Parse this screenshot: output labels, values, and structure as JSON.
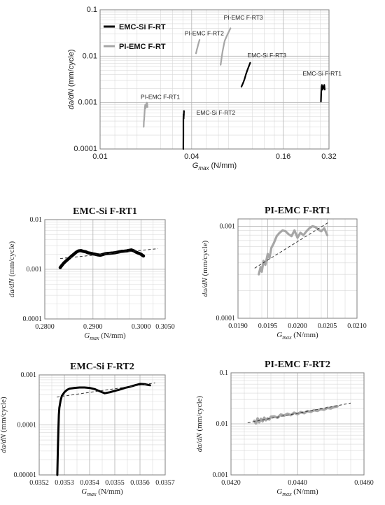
{
  "chart_data": [
    {
      "id": "main",
      "type": "line",
      "xscale": "log2",
      "yscale": "log10",
      "xlim": [
        0.01,
        0.32
      ],
      "ylim": [
        0.0001,
        0.1
      ],
      "xticks": [
        0.01,
        0.04,
        0.16,
        0.32
      ],
      "xtick_labels": [
        "0.01",
        "0.04",
        "0.16",
        "0.32"
      ],
      "yticks": [
        0.0001,
        0.001,
        0.01,
        0.1
      ],
      "ytick_labels": [
        "0.0001",
        "0.001",
        "0.01",
        "0.1"
      ],
      "xlabel_main": "G",
      "xlabel_sub": "max",
      "xlabel_unit": " (N/mm)",
      "ylabel_main": "da/dN",
      "ylabel_unit": " (mm/cycle)",
      "legend": [
        {
          "label": "EMC-Si F-RT",
          "color": "#000000"
        },
        {
          "label": "PI-EMC F-RT",
          "color": "#a6a6a6"
        }
      ],
      "series": [
        {
          "label": "EMC-Si F-RT1",
          "color": "#000000",
          "x": [
            0.2832,
            0.2845,
            0.286,
            0.2875,
            0.289,
            0.2905,
            0.292,
            0.294,
            0.296,
            0.298,
            0.3
          ],
          "y": [
            0.00105,
            0.0016,
            0.0022,
            0.0024,
            0.0021,
            0.0019,
            0.002,
            0.0021,
            0.0023,
            0.0024,
            0.0019
          ]
        },
        {
          "label": "PI-EMC F-RT1",
          "color": "#a6a6a6",
          "x": [
            0.01935,
            0.0194,
            0.0195,
            0.0196,
            0.0197,
            0.0198,
            0.0199,
            0.02,
            0.0201,
            0.0202,
            0.0203,
            0.0204,
            0.0205
          ],
          "y": [
            0.0003,
            0.00038,
            0.00045,
            0.0006,
            0.0008,
            0.0009,
            0.00075,
            0.00085,
            0.0008,
            0.00095,
            0.001,
            0.00095,
            0.0008
          ]
        },
        {
          "label": "EMC-Si F-RT2",
          "color": "#000000",
          "x": [
            0.03527,
            0.03528,
            0.03529,
            0.0353,
            0.03532,
            0.03535,
            0.0354,
            0.03545,
            0.0355,
            0.03555,
            0.0356,
            0.03565
          ],
          "y": [
            0.0001,
            0.0002,
            0.00035,
            0.00045,
            0.00052,
            0.00056,
            0.00056,
            0.00045,
            0.0005,
            0.00055,
            0.00066,
            0.00062
          ]
        },
        {
          "label": "PI-EMC F-RT2",
          "color": "#a6a6a6",
          "x": [
            0.0427,
            0.043,
            0.0433,
            0.0436,
            0.0439,
            0.0442,
            0.0445,
            0.0448,
            0.0451
          ],
          "y": [
            0.0115,
            0.0125,
            0.014,
            0.015,
            0.0165,
            0.018,
            0.0195,
            0.021,
            0.0225
          ]
        },
        {
          "label": "EMC-Si F-RT3",
          "color": "#000000",
          "x": [
            0.085,
            0.087,
            0.089,
            0.091,
            0.093,
            0.095,
            0.097
          ],
          "y": [
            0.0022,
            0.0026,
            0.0032,
            0.0041,
            0.005,
            0.006,
            0.0072
          ]
        },
        {
          "label": "PI-EMC F-RT3",
          "color": "#a6a6a6",
          "x": [
            0.062,
            0.063,
            0.064,
            0.065,
            0.066,
            0.068,
            0.07,
            0.072
          ],
          "y": [
            0.0065,
            0.0095,
            0.013,
            0.017,
            0.0215,
            0.027,
            0.033,
            0.04
          ]
        }
      ],
      "annotations": [
        {
          "text": "PI-EMC F-RT3",
          "x": 0.065,
          "y": 0.062
        },
        {
          "text": "PI-EMC F-RT2",
          "x": 0.036,
          "y": 0.028
        },
        {
          "text": "EMC-Si F-RT3",
          "x": 0.093,
          "y": 0.0095
        },
        {
          "text": "EMC-Si F-RT1",
          "x": 0.215,
          "y": 0.0038
        },
        {
          "text": "PI-EMC F-RT1",
          "x": 0.0185,
          "y": 0.0012
        },
        {
          "text": "EMC-Si F-RT2",
          "x": 0.043,
          "y": 0.00055
        }
      ]
    },
    {
      "id": "p1",
      "type": "line",
      "title": "EMC-Si F-RT1",
      "yscale": "log10",
      "xlim": [
        0.28,
        0.305
      ],
      "ylim": [
        0.0001,
        0.01
      ],
      "xticks": [
        0.28,
        0.29,
        0.3,
        0.305
      ],
      "xtick_labels": [
        "0.2800",
        "0.2900",
        "0.3000",
        "0.3050"
      ],
      "yticks": [
        0.0001,
        0.001,
        0.01
      ],
      "ytick_labels": [
        "0.0001",
        "0.001",
        "0.01"
      ],
      "xlabel_main": "G",
      "xlabel_sub": "max",
      "xlabel_unit": " (N/mm)",
      "ylabel_main": "da/dN",
      "ylabel_unit": " (mm/cycle)",
      "color": "#000000",
      "x": [
        0.2832,
        0.2836,
        0.284,
        0.2845,
        0.285,
        0.2855,
        0.286,
        0.2865,
        0.287,
        0.2875,
        0.288,
        0.2885,
        0.289,
        0.2895,
        0.29,
        0.2905,
        0.291,
        0.2915,
        0.292,
        0.2925,
        0.293,
        0.2935,
        0.294,
        0.2945,
        0.295,
        0.2955,
        0.296,
        0.2965,
        0.297,
        0.2975,
        0.298,
        0.2985,
        0.299,
        0.2995,
        0.3,
        0.3005
      ],
      "y": [
        0.00108,
        0.00122,
        0.00135,
        0.0015,
        0.00165,
        0.00182,
        0.002,
        0.0022,
        0.00235,
        0.00238,
        0.0023,
        0.00225,
        0.00215,
        0.0021,
        0.00205,
        0.002,
        0.00195,
        0.00192,
        0.00198,
        0.00205,
        0.00208,
        0.0021,
        0.00212,
        0.00215,
        0.0022,
        0.00225,
        0.0023,
        0.00232,
        0.00235,
        0.0024,
        0.00245,
        0.00235,
        0.0022,
        0.0021,
        0.002,
        0.00185
      ],
      "trend": [
        [
          0.2832,
          0.00165
        ],
        [
          0.3035,
          0.0026
        ]
      ]
    },
    {
      "id": "p2",
      "type": "line",
      "title": "PI-EMC F-RT1",
      "yscale": "log10",
      "xlim": [
        0.019,
        0.021
      ],
      "ylim": [
        0.0001,
        0.0012
      ],
      "xticks": [
        0.019,
        0.0195,
        0.02,
        0.0205,
        0.021
      ],
      "xtick_labels": [
        "0.0190",
        "0.0195",
        "0.0200",
        "0.0205",
        "0.0210"
      ],
      "yticks": [
        0.0001,
        0.001
      ],
      "ytick_labels": [
        "0.0001",
        "0.001"
      ],
      "xlabel_main": "G",
      "xlabel_sub": "max",
      "xlabel_unit": " (N/mm)",
      "ylabel_main": "da/dN",
      "ylabel_unit": " (mm/cycle)",
      "color": "#a6a6a6",
      "x": [
        0.01935,
        0.01938,
        0.0194,
        0.01943,
        0.01946,
        0.0195,
        0.01953,
        0.01956,
        0.0196,
        0.01965,
        0.0197,
        0.01975,
        0.0198,
        0.01985,
        0.0199,
        0.01995,
        0.02,
        0.02005,
        0.0201,
        0.02015,
        0.0202,
        0.02025,
        0.0203,
        0.02035,
        0.0204,
        0.02045,
        0.0205
      ],
      "y": [
        0.0003,
        0.00036,
        0.00032,
        0.00042,
        0.00038,
        0.0005,
        0.00045,
        0.00058,
        0.00065,
        0.00078,
        0.00085,
        0.0009,
        0.00088,
        0.00082,
        0.00078,
        0.0009,
        0.00075,
        0.00085,
        0.0008,
        0.00088,
        0.00095,
        0.001,
        0.00098,
        0.00092,
        0.00088,
        0.00095,
        0.0008
      ],
      "trend": [
        [
          0.01928,
          0.00035
        ],
        [
          0.02052,
          0.0011
        ]
      ]
    },
    {
      "id": "p3",
      "type": "line",
      "title": "EMC-Si F-RT2",
      "yscale": "log10",
      "xlim": [
        0.0352,
        0.0357
      ],
      "ylim": [
        1e-05,
        0.001
      ],
      "xticks": [
        0.0352,
        0.0353,
        0.0354,
        0.0355,
        0.0356,
        0.0357
      ],
      "xtick_labels": [
        "0.0352",
        "0.0353",
        "0.0354",
        "0.0355",
        "0.0356",
        "0.0357"
      ],
      "yticks": [
        1e-05,
        0.0001,
        0.001
      ],
      "ytick_labels": [
        "0.00001",
        "0.0001",
        "0.001"
      ],
      "xlabel_main": "G",
      "xlabel_sub": "max",
      "xlabel_unit": " (N/mm)",
      "ylabel_main": "da/dN",
      "ylabel_unit": " (mm/cycle)",
      "color": "#000000",
      "x": [
        0.035272,
        0.035274,
        0.035276,
        0.035278,
        0.03528,
        0.035285,
        0.03529,
        0.0353,
        0.03531,
        0.03532,
        0.03534,
        0.03536,
        0.03538,
        0.0354,
        0.03542,
        0.03544,
        0.03546,
        0.03548,
        0.0355,
        0.03552,
        0.03554,
        0.03556,
        0.03558,
        0.0356,
        0.03562,
        0.03564
      ],
      "y": [
        1e-05,
        3e-05,
        8e-05,
        0.00016,
        0.00022,
        0.00031,
        0.00038,
        0.00045,
        0.0005,
        0.00053,
        0.00055,
        0.00056,
        0.00056,
        0.00055,
        0.00052,
        0.00047,
        0.00043,
        0.00045,
        0.00048,
        0.00051,
        0.00055,
        0.00058,
        0.00062,
        0.00066,
        0.00065,
        0.00062
      ],
      "trend": [
        [
          0.03527,
          0.00036
        ],
        [
          0.03566,
          0.00069
        ]
      ]
    },
    {
      "id": "p4",
      "type": "line",
      "title": "PI-EMC F-RT2",
      "yscale": "log10",
      "xlim": [
        0.042,
        0.046
      ],
      "ylim": [
        0.001,
        0.1
      ],
      "xticks": [
        0.042,
        0.044,
        0.046
      ],
      "xtick_labels": [
        "0.0420",
        "0.0440",
        "0.0460"
      ],
      "yticks": [
        0.001,
        0.01,
        0.1
      ],
      "ytick_labels": [
        "0.001",
        "0.01",
        "0.1"
      ],
      "xlabel_main": "G",
      "xlabel_sub": "max",
      "xlabel_unit": " (N/mm)",
      "ylabel_main": "da/dN",
      "ylabel_unit": " (mm/cycle)",
      "color": "#a6a6a6",
      "x": [
        0.0427,
        0.04275,
        0.0428,
        0.04285,
        0.0429,
        0.04295,
        0.043,
        0.04305,
        0.0431,
        0.04315,
        0.0432,
        0.0433,
        0.0434,
        0.0435,
        0.0436,
        0.0437,
        0.0438,
        0.0439,
        0.044,
        0.0441,
        0.0442,
        0.0443,
        0.0444,
        0.0445,
        0.0446,
        0.0447,
        0.0448,
        0.0449,
        0.045,
        0.0451,
        0.0452
      ],
      "y": [
        0.0115,
        0.0102,
        0.0128,
        0.0108,
        0.0125,
        0.0112,
        0.0132,
        0.0118,
        0.0128,
        0.0122,
        0.0138,
        0.014,
        0.0132,
        0.0152,
        0.0145,
        0.0158,
        0.0148,
        0.0165,
        0.0155,
        0.017,
        0.0162,
        0.0178,
        0.0172,
        0.0185,
        0.018,
        0.0195,
        0.019,
        0.0205,
        0.02,
        0.0215,
        0.022
      ],
      "trend": [
        [
          0.0425,
          0.0105
        ],
        [
          0.0456,
          0.0255
        ]
      ]
    }
  ]
}
